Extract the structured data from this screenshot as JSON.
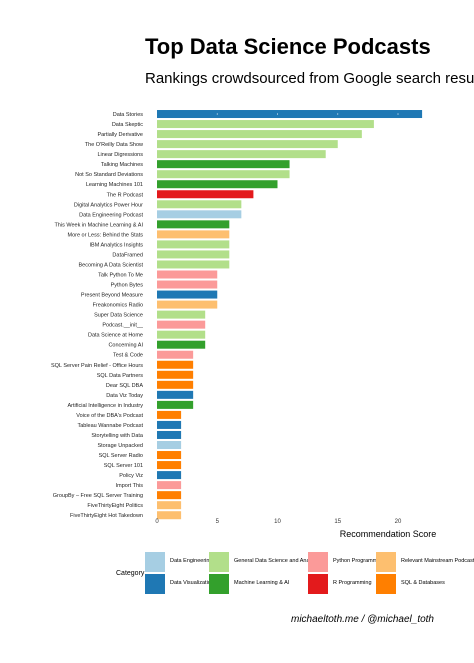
{
  "title": "Top Data Science Podcasts",
  "subtitle": "Rankings crowdsourced from Google search results",
  "credit": "michaeltoth.me / @michael_toth",
  "legend_title": "Category",
  "category_colors": {
    "Data Engineering": "#a6cee3",
    "Data Visualization": "#1f78b4",
    "General Data Science and Analytics": "#b2df8a",
    "Machine Learning & AI": "#33a02c",
    "Python Programming": "#fb9a99",
    "R Programming": "#e31a1c",
    "Relevant Mainstream Podcasts": "#fdbf6f",
    "SQL & Databases": "#ff7f00"
  },
  "chart_data": {
    "type": "bar",
    "orientation": "horizontal",
    "xlabel": "Recommendation Score",
    "ylabel": "",
    "xlim": [
      0,
      22
    ],
    "xticks": [
      0,
      5,
      10,
      15,
      20
    ],
    "grid": false,
    "legend_position": "bottom",
    "categories": [
      "Data Stories",
      "Data Skeptic",
      "Partially Derivative",
      "The O'Reilly Data Show",
      "Linear Digressions",
      "Talking Machines",
      "Not So Standard Deviations",
      "Learning Machines 101",
      "The R Podcast",
      "Digital Analytics Power Hour",
      "Data Engineering Podcast",
      "This Week in Machine Learning & AI",
      "More or Less: Behind the Stats",
      "IBM Analytics Insights",
      "DataFramed",
      "Becoming A Data Scientist",
      "Talk Python To Me",
      "Python Bytes",
      "Present Beyond Measure",
      "Freakonomics Radio",
      "Super Data Science",
      "Podcast.__init__",
      "Data Science at Home",
      "Concerning AI",
      "Test & Code",
      "SQL Server Pain Relief - Office Hours",
      "SQL Data Partners",
      "Dear SQL DBA",
      "Data Viz Today",
      "Artificial Intelligence in Industry",
      "Voice of the DBA's Podcast",
      "Tableau Wannabe Podcast",
      "Storytelling with Data",
      "Storage Unpacked",
      "SQL Server Radio",
      "SQL Server 101",
      "Policy Viz",
      "Import This",
      "GroupBy – Free SQL Server Training",
      "FiveThirtyEight Politics",
      "FiveThirtyEight Hot Takedown"
    ],
    "values": [
      22,
      18,
      17,
      15,
      14,
      11,
      11,
      10,
      8,
      7,
      7,
      6,
      6,
      6,
      6,
      6,
      5,
      5,
      5,
      5,
      4,
      4,
      4,
      4,
      3,
      3,
      3,
      3,
      3,
      3,
      2,
      2,
      2,
      2,
      2,
      2,
      2,
      2,
      2,
      2,
      2
    ],
    "bar_categories": [
      "Data Visualization",
      "General Data Science and Analytics",
      "General Data Science and Analytics",
      "General Data Science and Analytics",
      "General Data Science and Analytics",
      "Machine Learning & AI",
      "General Data Science and Analytics",
      "Machine Learning & AI",
      "R Programming",
      "General Data Science and Analytics",
      "Data Engineering",
      "Machine Learning & AI",
      "Relevant Mainstream Podcasts",
      "General Data Science and Analytics",
      "General Data Science and Analytics",
      "General Data Science and Analytics",
      "Python Programming",
      "Python Programming",
      "Data Visualization",
      "Relevant Mainstream Podcasts",
      "General Data Science and Analytics",
      "Python Programming",
      "General Data Science and Analytics",
      "Machine Learning & AI",
      "Python Programming",
      "SQL & Databases",
      "SQL & Databases",
      "SQL & Databases",
      "Data Visualization",
      "Machine Learning & AI",
      "SQL & Databases",
      "Data Visualization",
      "Data Visualization",
      "Data Engineering",
      "SQL & Databases",
      "SQL & Databases",
      "Data Visualization",
      "Python Programming",
      "SQL & Databases",
      "Relevant Mainstream Podcasts",
      "Relevant Mainstream Podcasts"
    ]
  }
}
